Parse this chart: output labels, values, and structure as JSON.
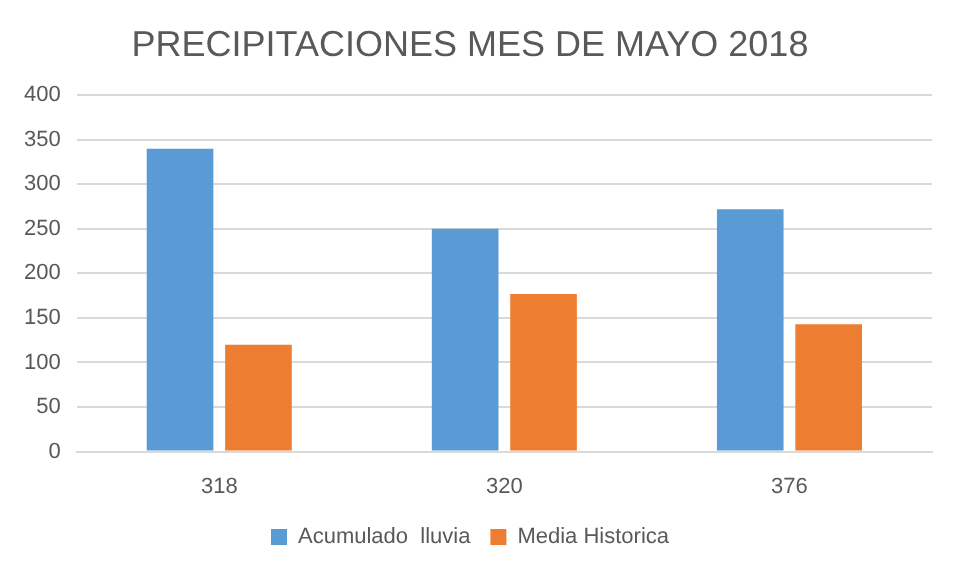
{
  "chart_data": {
    "type": "bar",
    "title": "PRECIPITACIONES MES DE MAYO 2018",
    "categories": [
      "318",
      "320",
      "376"
    ],
    "series": [
      {
        "name": "Acumulado  lluvia",
        "color": "#5b9bd5",
        "values": [
          340,
          250,
          272
        ]
      },
      {
        "name": "Media Historica",
        "color": "#ed7d31",
        "values": [
          120,
          177,
          143
        ]
      }
    ],
    "ylim": [
      0,
      400
    ],
    "yticks": [
      0,
      50,
      100,
      150,
      200,
      250,
      300,
      350,
      400
    ],
    "grid": "y",
    "legend": "bottom"
  }
}
